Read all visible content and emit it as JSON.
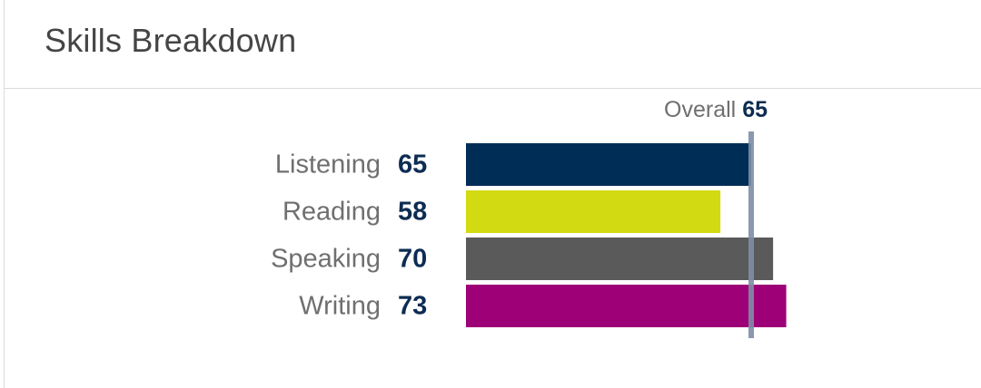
{
  "header": {
    "title": "Skills Breakdown"
  },
  "chart_data": {
    "type": "bar",
    "orientation": "horizontal",
    "categories": [
      "Listening",
      "Reading",
      "Speaking",
      "Writing"
    ],
    "values": [
      65,
      58,
      70,
      73
    ],
    "colors": [
      "#002d56",
      "#d2da12",
      "#5a5a5a",
      "#9e0077"
    ],
    "reference_line": {
      "label": "Overall",
      "value": 65,
      "color": "#7e8ea6"
    },
    "label_color": "#6f6f6f",
    "value_color": "#0d2c52",
    "grid": false
  }
}
